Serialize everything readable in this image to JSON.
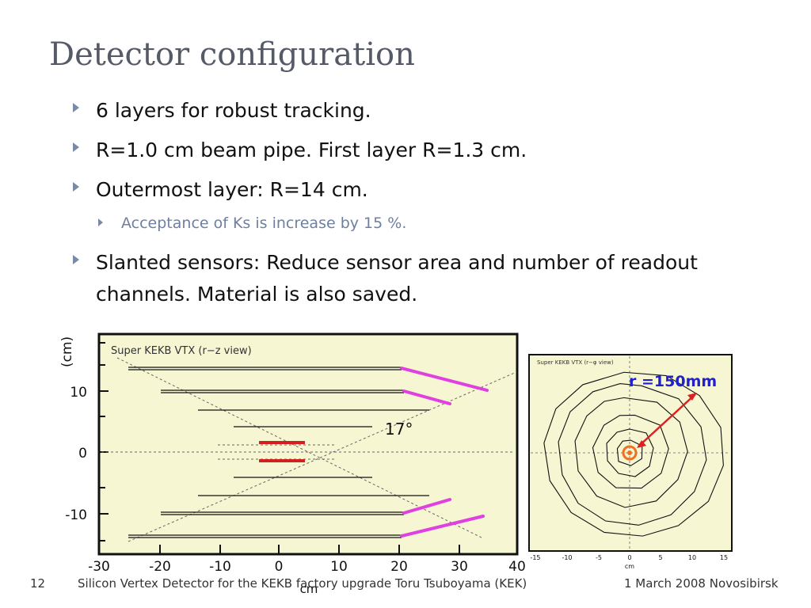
{
  "slide": {
    "title": "Detector configuration",
    "bullets": [
      {
        "text": "6 layers for robust tracking."
      },
      {
        "text": "R=1.0 cm beam pipe. First layer R=1.3 cm."
      },
      {
        "text": "Outermost layer: R=14 cm."
      },
      {
        "text": "Slanted sensors: Reduce sensor area and number of readout",
        "text2": "channels. Material is also saved."
      }
    ],
    "sub_bullet": "Acceptance of Ks is increase by 15 %."
  },
  "rz_view": {
    "panel_title": "Super KEKB VTX (r−z view)",
    "ylabel": "(cm)",
    "yticks": [
      "10",
      "0",
      "-10"
    ],
    "xticks": [
      "-30",
      "-20",
      "-10",
      "0",
      "10",
      "20",
      "30",
      "40"
    ],
    "xlabel": "cm",
    "angle_label": "17°",
    "colors": {
      "background": "#f6f6d2",
      "slant": "#e040e0",
      "beampipe": "#d22020"
    }
  },
  "rphi_view": {
    "panel_title": "Super KEKB VTX (r−φ view)",
    "radius_label": "r =150mm",
    "xticks": [
      "-15",
      "-10",
      "-5",
      "0",
      "5",
      "10",
      "15"
    ],
    "xlabel": "cm",
    "colors": {
      "background": "#f6f6d2",
      "label": "#2020d0",
      "arrow": "#e02020",
      "pipe": "#f07020"
    }
  },
  "footer": {
    "page_number": "12",
    "center": "Silicon Vertex Detector for the KEKB factory upgrade Toru Tsuboyama (KEK)",
    "right": "1 March 2008 Novosibirsk"
  }
}
